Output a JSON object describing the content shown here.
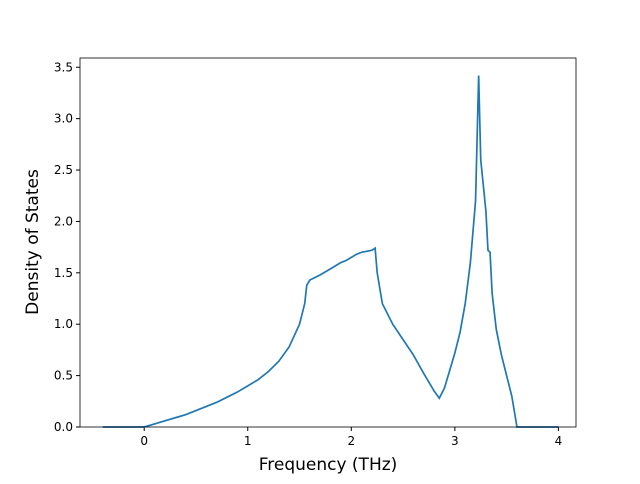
{
  "chart_data": {
    "type": "line",
    "x_label": "Frequency (THz)",
    "y_label": "Density of States",
    "x": [
      -0.4,
      -0.2,
      0.0,
      0.1,
      0.2,
      0.3,
      0.4,
      0.5,
      0.6,
      0.7,
      0.8,
      0.9,
      1.0,
      1.1,
      1.2,
      1.3,
      1.4,
      1.5,
      1.55,
      1.57,
      1.6,
      1.7,
      1.8,
      1.9,
      1.95,
      2.0,
      2.05,
      2.1,
      2.2,
      2.23,
      2.25,
      2.3,
      2.4,
      2.5,
      2.6,
      2.7,
      2.8,
      2.85,
      2.9,
      2.95,
      3.0,
      3.05,
      3.1,
      3.15,
      3.2,
      3.23,
      3.25,
      3.3,
      3.32,
      3.34,
      3.36,
      3.4,
      3.45,
      3.5,
      3.55,
      3.6,
      3.7,
      3.8,
      4.0
    ],
    "values": [
      0,
      0,
      0,
      0.03,
      0.06,
      0.09,
      0.12,
      0.16,
      0.2,
      0.24,
      0.29,
      0.34,
      0.4,
      0.46,
      0.54,
      0.64,
      0.78,
      1.0,
      1.2,
      1.38,
      1.43,
      1.48,
      1.54,
      1.6,
      1.62,
      1.65,
      1.68,
      1.7,
      1.72,
      1.74,
      1.5,
      1.2,
      1.0,
      0.85,
      0.7,
      0.52,
      0.35,
      0.28,
      0.38,
      0.55,
      0.72,
      0.92,
      1.2,
      1.6,
      2.2,
      3.42,
      2.6,
      2.1,
      1.72,
      1.7,
      1.3,
      0.95,
      0.7,
      0.5,
      0.3,
      0.0,
      0,
      0,
      0
    ],
    "color": "#1f77b4",
    "xlim": [
      -0.62,
      4.17
    ],
    "xticks": [
      0,
      1,
      2,
      3,
      4
    ],
    "ylim": [
      0,
      3.59
    ],
    "yticks": [
      {
        "value": 0,
        "label": "0.0"
      },
      {
        "value": 0.5,
        "label": "0.5"
      },
      {
        "value": 1,
        "label": "1.0"
      },
      {
        "value": 1.5,
        "label": "1.5"
      },
      {
        "value": 2,
        "label": "2.0"
      },
      {
        "value": 2.5,
        "label": "2.5"
      },
      {
        "value": 3,
        "label": "3.0"
      },
      {
        "value": 3.5,
        "label": "3.5"
      }
    ]
  }
}
